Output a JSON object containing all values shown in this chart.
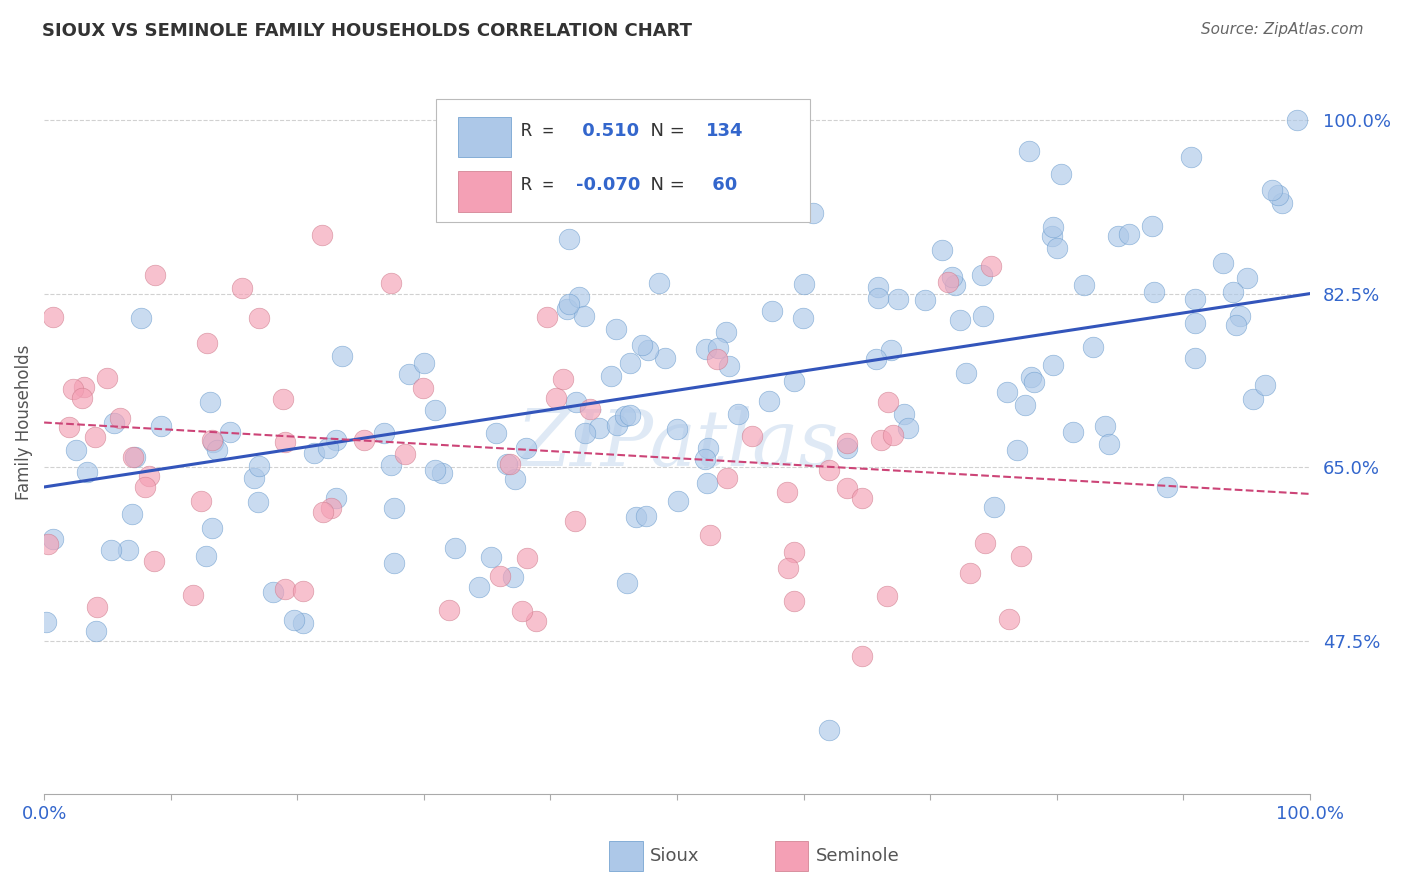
{
  "title": "SIOUX VS SEMINOLE FAMILY HOUSEHOLDS CORRELATION CHART",
  "source": "Source: ZipAtlas.com",
  "ylabel": "Family Households",
  "xlim": [
    0.0,
    1.0
  ],
  "ylim": [
    0.32,
    1.07
  ],
  "yticks": [
    0.475,
    0.65,
    0.825,
    1.0
  ],
  "ytick_labels": [
    "47.5%",
    "65.0%",
    "82.5%",
    "100.0%"
  ],
  "sioux_color": "#adc8e8",
  "seminole_color": "#f4a0b5",
  "sioux_edge": "#6699cc",
  "seminole_edge": "#cc7788",
  "trend_sioux_color": "#3355bb",
  "trend_seminole_color": "#cc4477",
  "R_sioux": 0.51,
  "N_sioux": 134,
  "R_seminole": -0.07,
  "N_seminole": 60,
  "background_color": "#ffffff",
  "grid_color": "#cccccc",
  "title_color": "#333333",
  "axis_tick_color": "#3366cc",
  "ylabel_color": "#555555",
  "watermark_color": "#b8d0ea",
  "legend_text_dark": "#333333",
  "legend_val_color": "#3366cc",
  "source_color": "#666666",
  "sioux_trend_intercept": 0.63,
  "sioux_trend_slope": 0.195,
  "seminole_trend_intercept": 0.695,
  "seminole_trend_slope": -0.072
}
